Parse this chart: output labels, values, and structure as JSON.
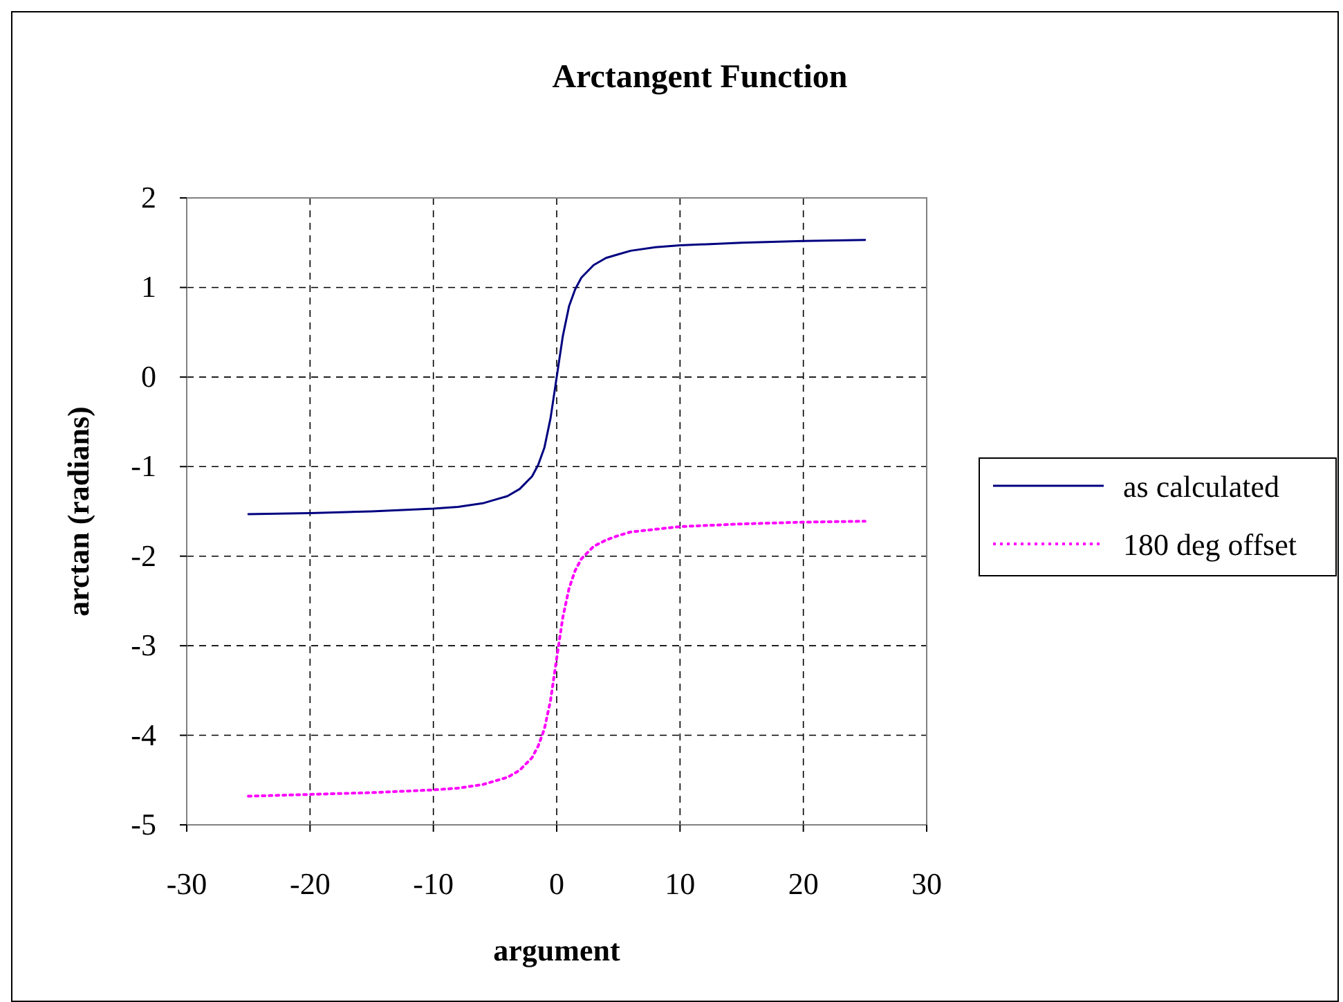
{
  "chart_data": {
    "type": "line",
    "title": "Arctangent Function",
    "xlabel": "argument",
    "ylabel": "arctan (radians)",
    "x": [
      -25,
      -20,
      -15,
      -10,
      -8,
      -6,
      -5,
      -4,
      -3,
      -2,
      -1.5,
      -1,
      -0.5,
      0,
      0.5,
      1,
      1.5,
      2,
      3,
      4,
      5,
      6,
      8,
      10,
      15,
      20,
      25
    ],
    "series": [
      {
        "name": "as calculated",
        "color": "#000080",
        "line_style": "solid",
        "values": [
          -1.53,
          -1.52,
          -1.5,
          -1.47,
          -1.45,
          -1.41,
          -1.37,
          -1.33,
          -1.25,
          -1.11,
          -0.98,
          -0.79,
          -0.46,
          0,
          0.46,
          0.79,
          0.98,
          1.11,
          1.25,
          1.33,
          1.37,
          1.41,
          1.45,
          1.47,
          1.5,
          1.52,
          1.53
        ]
      },
      {
        "name": "180 deg offset",
        "color": "#ff00ff",
        "line_style": "dotted",
        "values": [
          -4.68,
          -4.66,
          -4.64,
          -4.61,
          -4.59,
          -4.55,
          -4.51,
          -4.47,
          -4.39,
          -4.25,
          -4.12,
          -3.93,
          -3.61,
          -3.14,
          -2.68,
          -2.36,
          -2.16,
          -2.03,
          -1.89,
          -1.82,
          -1.77,
          -1.73,
          -1.7,
          -1.67,
          -1.64,
          -1.62,
          -1.61
        ]
      }
    ],
    "xlim": [
      -30,
      30
    ],
    "xticks": [
      -30,
      -20,
      -10,
      0,
      10,
      20,
      30
    ],
    "ylim": [
      -5,
      2
    ],
    "yticks": [
      -5,
      -4,
      -3,
      -2,
      -1,
      0,
      1,
      2
    ],
    "grid": true,
    "legend": "right",
    "marker": "none"
  }
}
